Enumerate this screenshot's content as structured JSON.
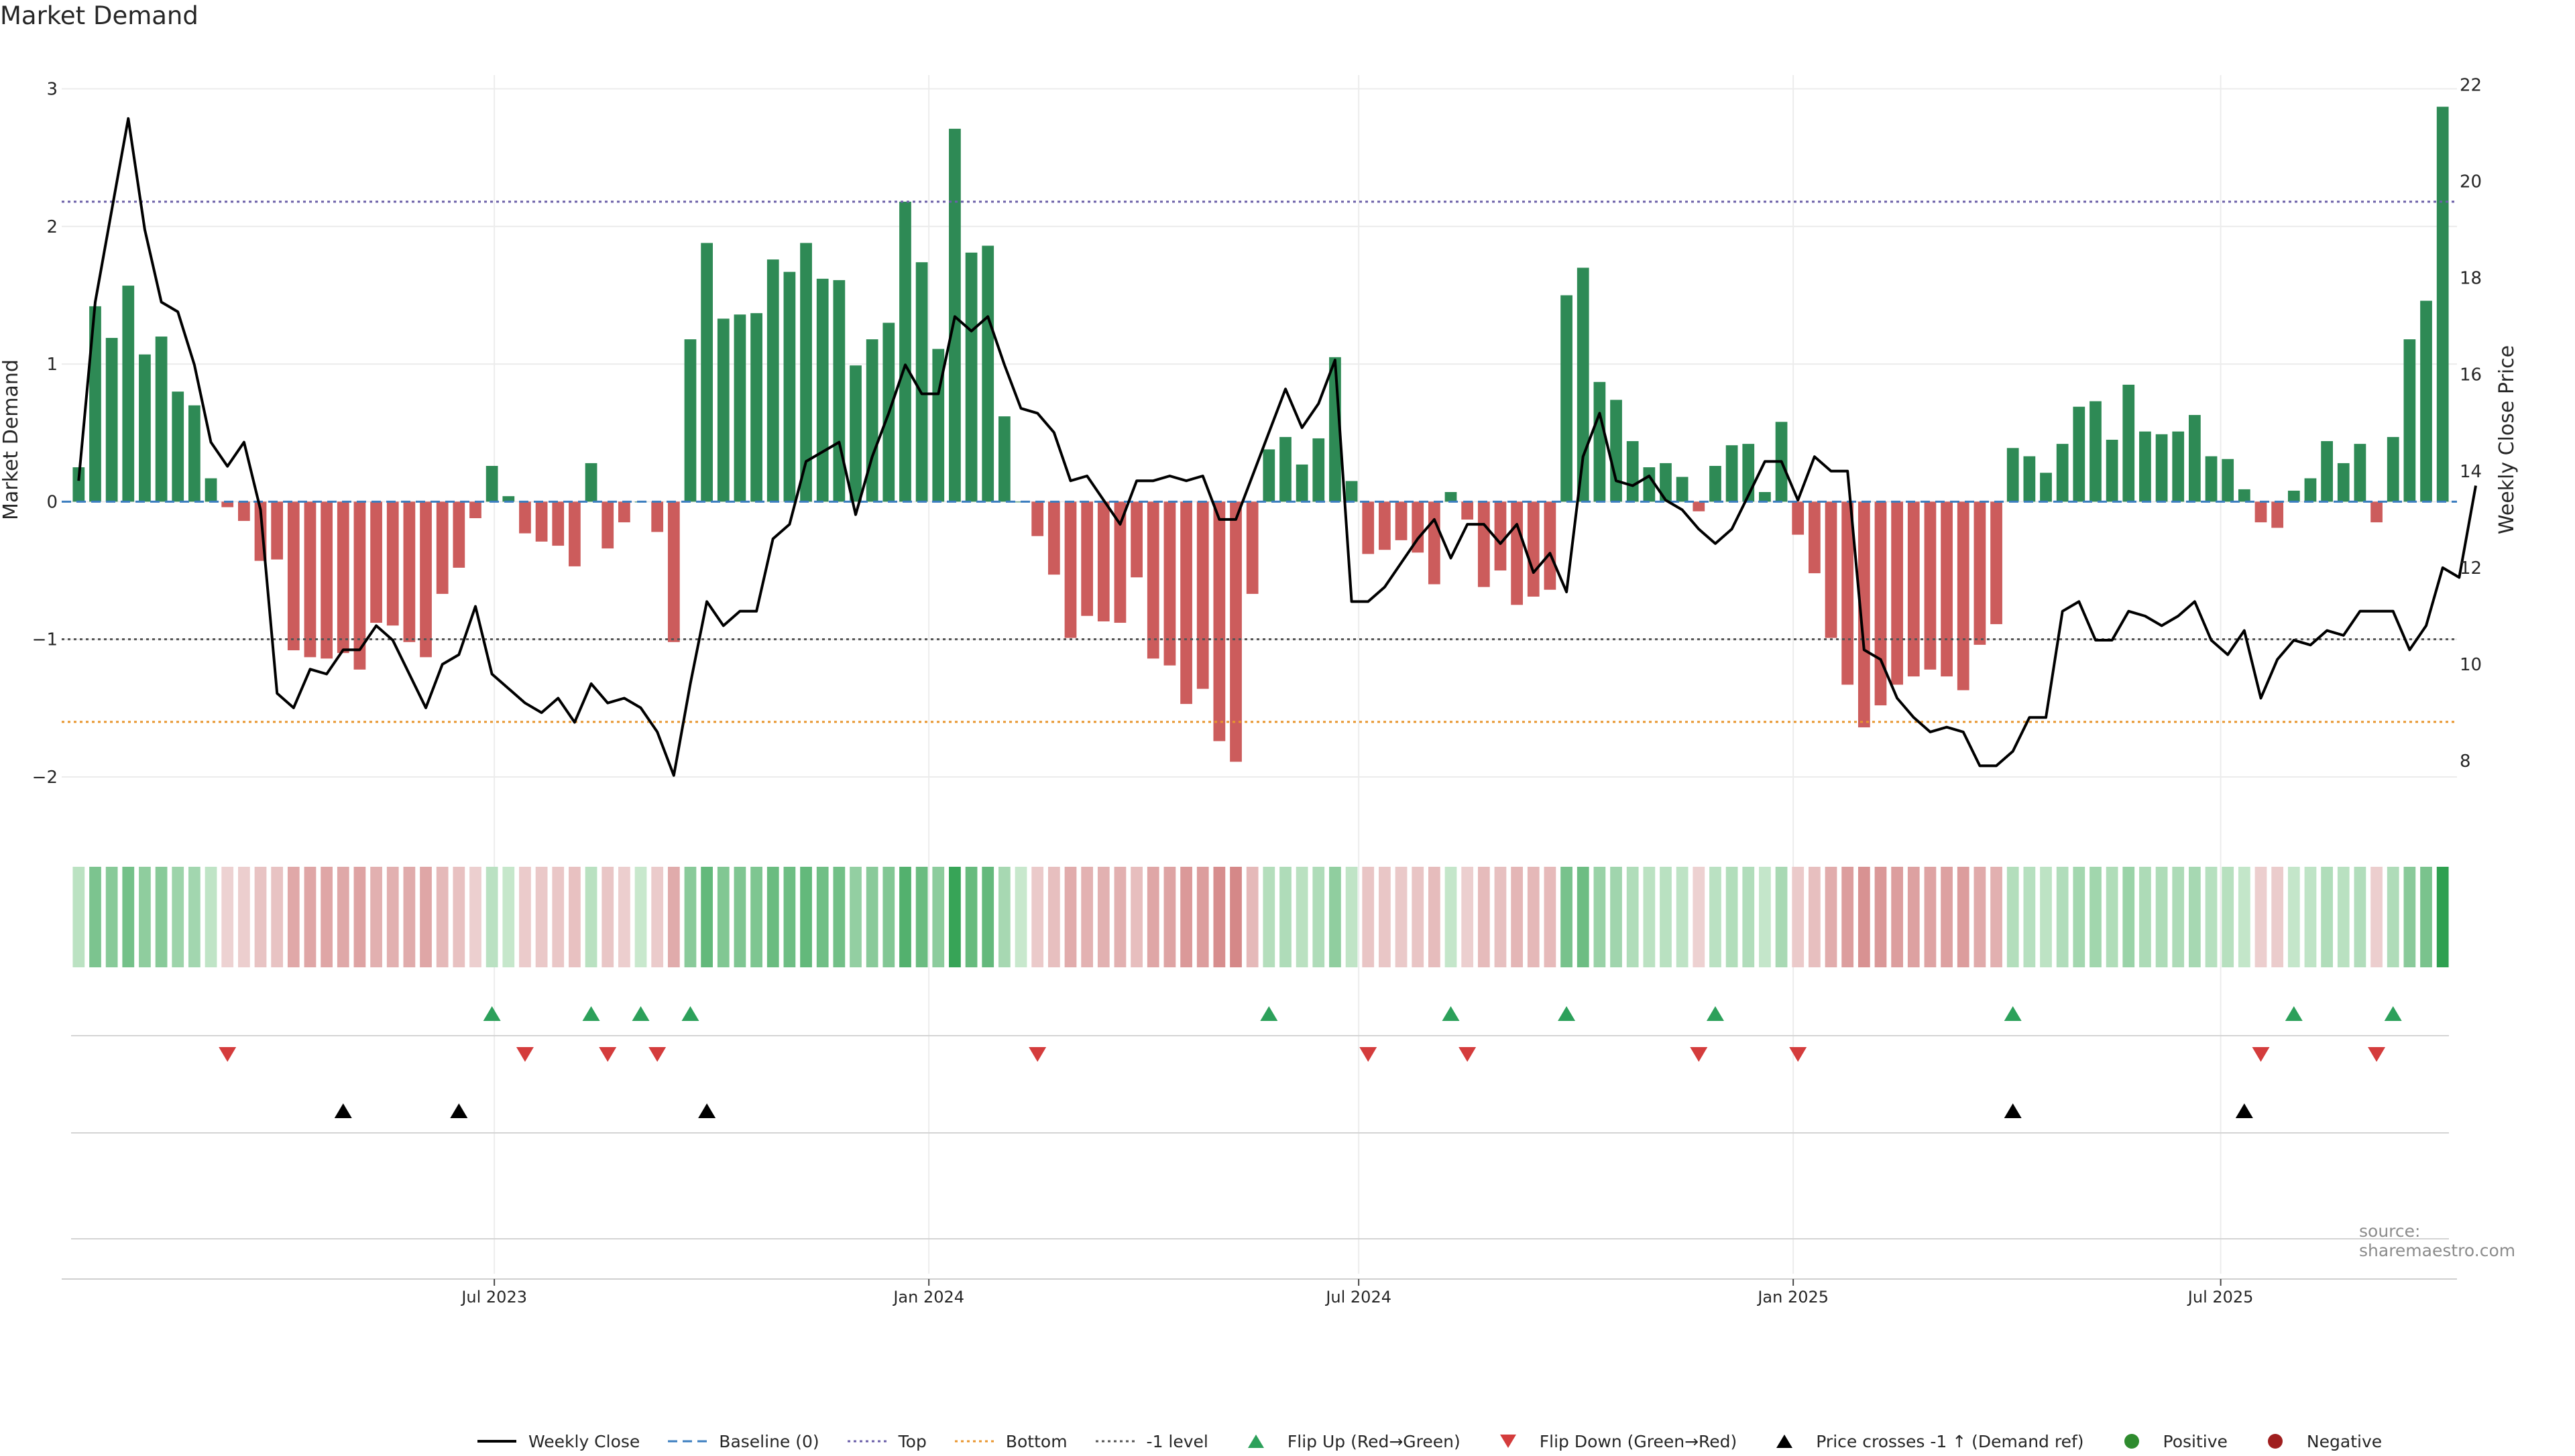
{
  "title": "Market Demand",
  "source": "source: sharemaestro.com",
  "chart_data": {
    "type": "bar",
    "x_ticks": [
      "Jul 2023",
      "Jan 2024",
      "Jul 2024",
      "Jan 2025",
      "Jul 2025"
    ],
    "weeks_start": "2023-01-06",
    "weeks_count": 144,
    "left_axis": {
      "label": "Market Demand",
      "ticks": [
        -2,
        -1,
        0,
        1,
        2,
        3
      ],
      "range": [
        -2.2,
        3.1
      ]
    },
    "right_axis": {
      "label": "Weekly Close Price",
      "ticks": [
        8,
        10,
        12,
        14,
        16,
        18,
        20,
        22
      ],
      "range": [
        7.1,
        22.2
      ]
    },
    "levels": {
      "top": 2.18,
      "bottom": -1.6,
      "minus_one": -1,
      "baseline": 0
    },
    "demand": [
      0.25,
      1.42,
      1.19,
      1.57,
      1.07,
      1.2,
      0.8,
      0.7,
      0.17,
      -0.04,
      -0.14,
      -0.43,
      -0.42,
      -1.08,
      -1.13,
      -1.14,
      -1.1,
      -1.22,
      -0.88,
      -0.9,
      -1.02,
      -1.13,
      -0.67,
      -0.48,
      -0.12,
      0.26,
      0.04,
      -0.23,
      -0.29,
      -0.32,
      -0.47,
      0.28,
      -0.34,
      -0.15,
      0.0,
      -0.22,
      -1.02,
      1.18,
      1.88,
      1.33,
      1.36,
      1.37,
      1.76,
      1.67,
      1.88,
      1.62,
      1.61,
      0.99,
      1.18,
      1.3,
      2.18,
      1.74,
      1.11,
      2.71,
      1.81,
      1.86,
      0.62,
      0.0,
      -0.25,
      -0.53,
      -0.99,
      -0.83,
      -0.87,
      -0.88,
      -0.55,
      -1.14,
      -1.19,
      -1.47,
      -1.36,
      -1.74,
      -1.89,
      -0.67,
      0.38,
      0.47,
      0.27,
      0.46,
      1.05,
      0.15,
      -0.38,
      -0.35,
      -0.28,
      -0.37,
      -0.6,
      0.07,
      -0.13,
      -0.62,
      -0.5,
      -0.75,
      -0.69,
      -0.64,
      1.5,
      1.7,
      0.87,
      0.74,
      0.44,
      0.25,
      0.28,
      0.18,
      -0.07,
      0.26,
      0.41,
      0.42,
      0.07,
      0.58,
      -0.24,
      -0.52,
      -0.99,
      -1.33,
      -1.64,
      -1.48,
      -1.33,
      -1.27,
      -1.22,
      -1.27,
      -1.37,
      -1.04,
      -0.89,
      0.39,
      0.33,
      0.21,
      0.42,
      0.69,
      0.73,
      0.45,
      0.85,
      0.51,
      0.49,
      0.51,
      0.63,
      0.33,
      0.31,
      0.09,
      -0.15,
      -0.19,
      0.08,
      0.17,
      0.44,
      0.28,
      0.42,
      -0.15,
      0.47,
      1.18,
      1.46,
      2.87
    ],
    "weekly_close": [
      13.8,
      17.5,
      19.4,
      21.3,
      19.0,
      17.5,
      17.3,
      16.2,
      14.6,
      14.1,
      14.6,
      13.2,
      9.4,
      9.1,
      9.9,
      9.8,
      10.3,
      10.3,
      10.8,
      10.5,
      9.8,
      9.1,
      10.0,
      10.2,
      11.2,
      9.8,
      9.5,
      9.2,
      9.0,
      9.3,
      8.8,
      9.6,
      9.2,
      9.3,
      9.1,
      8.6,
      7.7,
      9.6,
      11.3,
      10.8,
      11.1,
      11.1,
      12.6,
      12.9,
      14.2,
      14.4,
      14.6,
      13.1,
      14.3,
      15.2,
      16.2,
      15.6,
      15.6,
      17.2,
      16.9,
      17.2,
      16.2,
      15.3,
      15.2,
      14.8,
      13.8,
      13.9,
      13.4,
      12.9,
      13.8,
      13.8,
      13.9,
      13.8,
      13.9,
      13.0,
      13.0,
      13.9,
      14.8,
      15.7,
      14.9,
      15.4,
      16.3,
      11.3,
      11.3,
      11.6,
      12.1,
      12.6,
      13.0,
      12.2,
      12.9,
      12.9,
      12.5,
      12.9,
      11.9,
      12.3,
      11.5,
      14.3,
      15.2,
      13.8,
      13.7,
      13.9,
      13.4,
      13.2,
      12.8,
      12.5,
      12.8,
      13.5,
      14.2,
      14.2,
      13.4,
      14.3,
      14.0,
      14.0,
      10.3,
      10.1,
      9.3,
      8.9,
      8.6,
      8.7,
      8.6,
      7.9,
      7.9,
      8.2,
      8.9,
      8.9,
      11.1,
      11.3,
      10.5,
      10.5,
      11.1,
      11.0,
      10.8,
      11.0,
      11.3,
      10.5,
      10.2,
      10.7,
      9.3,
      10.1,
      10.5,
      10.4,
      10.7,
      10.6,
      11.1,
      11.1,
      11.1,
      10.3,
      10.8,
      12.0,
      11.8,
      13.7
    ],
    "flip_up_weeks": [
      25,
      31,
      34,
      37,
      72,
      83,
      90,
      99,
      117,
      134,
      140
    ],
    "flip_down_weeks": [
      9,
      27,
      32,
      35,
      58,
      78,
      84,
      98,
      104,
      132,
      139
    ],
    "cross_weeks": [
      16,
      23,
      38,
      117,
      131
    ],
    "legend": [
      {
        "name": "Weekly Close",
        "marker": "line",
        "color": "#000000"
      },
      {
        "name": "Baseline (0)",
        "marker": "dash",
        "color": "#3b7dbf"
      },
      {
        "name": "Top",
        "marker": "dot",
        "color": "#6b5fa8"
      },
      {
        "name": "Bottom",
        "marker": "dot",
        "color": "#e8952d"
      },
      {
        "name": "-1 level",
        "marker": "dot",
        "color": "#555555"
      },
      {
        "name": "Flip Up (Red→Green)",
        "marker": "tri-up",
        "color": "#2ca05a"
      },
      {
        "name": "Flip Down (Green→Red)",
        "marker": "tri-down",
        "color": "#d43c3c"
      },
      {
        "name": "Price crosses -1 ↑ (Demand ref)",
        "marker": "tri-up",
        "color": "#000000"
      },
      {
        "name": "Positive",
        "marker": "circle",
        "color": "#2e8b2e"
      },
      {
        "name": "Negative",
        "marker": "circle",
        "color": "#a01e1e"
      }
    ],
    "colors": {
      "positive_bar": "#2e8a55",
      "negative_bar": "#cc5c5c"
    }
  }
}
